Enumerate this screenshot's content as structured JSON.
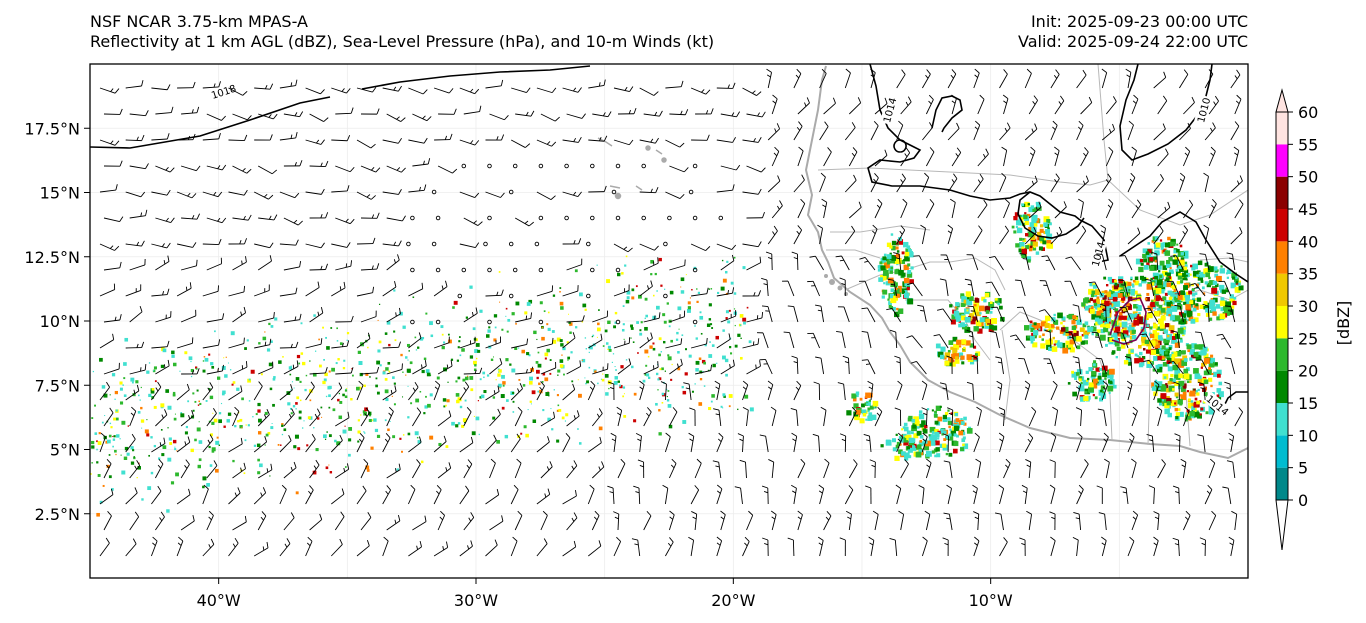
{
  "header": {
    "model_title": "NSF NCAR 3.75-km MPAS-A",
    "field_title": "Reflectivity at 1 km AGL (dBZ), Sea-Level Pressure (hPa), and 10-m Winds (kt)",
    "init_label": "Init: 2025-09-23 00:00 UTC",
    "valid_label": "Valid: 2025-09-24 22:00 UTC"
  },
  "map": {
    "lon_range": [
      -45,
      0
    ],
    "lat_range": [
      0,
      20
    ],
    "lon_ticks": [
      {
        "value": -40,
        "label": "40°W"
      },
      {
        "value": -30,
        "label": "30°W"
      },
      {
        "value": -20,
        "label": "20°W"
      },
      {
        "value": -10,
        "label": "10°W"
      }
    ],
    "lat_ticks": [
      {
        "value": 2.5,
        "label": "2.5°N"
      },
      {
        "value": 5,
        "label": "5°N"
      },
      {
        "value": 7.5,
        "label": "7.5°N"
      },
      {
        "value": 10,
        "label": "10°N"
      },
      {
        "value": 12.5,
        "label": "12.5°N"
      },
      {
        "value": 15,
        "label": "15°N"
      },
      {
        "value": 17.5,
        "label": "17.5°N"
      }
    ],
    "isobar_labels": [
      {
        "text": "1018",
        "lon": -39.8,
        "lat": 18.9
      },
      {
        "text": "1014",
        "lon": -13.9,
        "lat": 18.2
      },
      {
        "text": "1010",
        "lon": -1.7,
        "lat": 18.2
      },
      {
        "text": "1014",
        "lon": -5.8,
        "lat": 12.6
      },
      {
        "text": "1014",
        "lon": -1.2,
        "lat": 6.7
      }
    ]
  },
  "colorbar": {
    "label": "[dBZ]",
    "levels": [
      0,
      5,
      10,
      15,
      20,
      25,
      30,
      35,
      40,
      45,
      50,
      55,
      60
    ],
    "tick_labels": [
      "0",
      "5",
      "10",
      "15",
      "20",
      "25",
      "30",
      "35",
      "40",
      "45",
      "50",
      "55",
      "60"
    ],
    "colors": [
      "#ffffff",
      "#00888a",
      "#00bcd0",
      "#40e0d0",
      "#008800",
      "#2db82d",
      "#ffff00",
      "#f0c800",
      "#ff8000",
      "#cc0000",
      "#8b0000",
      "#ff00ff",
      "#ffe4e1"
    ]
  },
  "colors": {
    "land_outline": "#aaaaaa",
    "isobar": "#000000",
    "barb": "#000000"
  }
}
